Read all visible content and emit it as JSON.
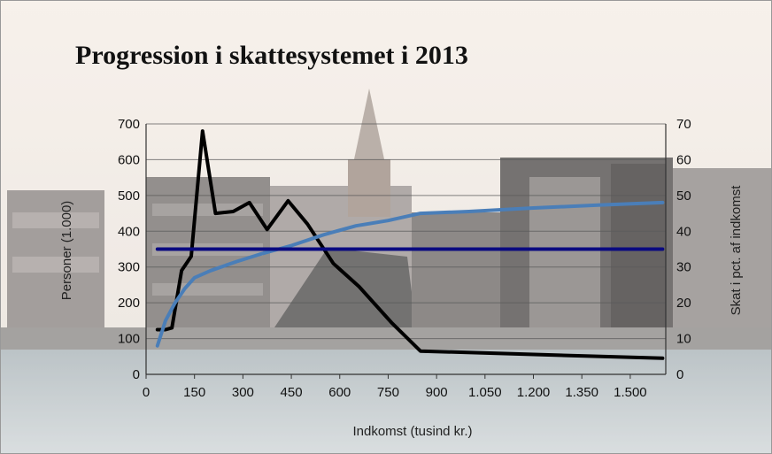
{
  "chart_data": {
    "type": "line",
    "title": "Progression i skattesystemet i 2013",
    "xlabel": "Indkomst (tusind kr.)",
    "ylabel_left": "Personer (1.000)",
    "ylabel_right": "Skat i pct. af indkomst",
    "xlim": [
      0,
      1610
    ],
    "ylim_left": [
      0,
      700
    ],
    "ylim_right": [
      0,
      70
    ],
    "x_ticks": [
      0,
      150,
      300,
      450,
      600,
      750,
      900,
      1050,
      1200,
      1350,
      1500
    ],
    "x_tick_labels": [
      "0",
      "150",
      "300",
      "450",
      "600",
      "750",
      "900",
      "1.050",
      "1.200",
      "1.350",
      "1.500"
    ],
    "y_left_ticks": [
      0,
      100,
      200,
      300,
      400,
      500,
      600,
      700
    ],
    "y_right_ticks": [
      0,
      10,
      20,
      30,
      40,
      50,
      60,
      70
    ],
    "grid": true,
    "series": [
      {
        "axis": "left",
        "color": "#000000",
        "x": [
          35,
          60,
          80,
          110,
          140,
          175,
          215,
          270,
          320,
          375,
          440,
          500,
          580,
          660,
          760,
          850,
          1600
        ],
        "y": [
          125,
          125,
          130,
          290,
          330,
          680,
          450,
          455,
          480,
          405,
          485,
          420,
          310,
          245,
          145,
          65,
          45
        ]
      },
      {
        "axis": "right",
        "color": "#4a7eb8",
        "x": [
          35,
          60,
          90,
          120,
          150,
          200,
          280,
          350,
          450,
          550,
          650,
          750,
          850,
          1000,
          1200,
          1400,
          1600
        ],
        "y": [
          8,
          15,
          20,
          24,
          27,
          29,
          31.5,
          33.5,
          36,
          39,
          41.5,
          43,
          45,
          45.5,
          46.5,
          47.3,
          48
        ]
      },
      {
        "axis": "right",
        "color": "#0a0a80",
        "x": [
          35,
          1600
        ],
        "y": [
          35,
          35
        ]
      }
    ]
  }
}
